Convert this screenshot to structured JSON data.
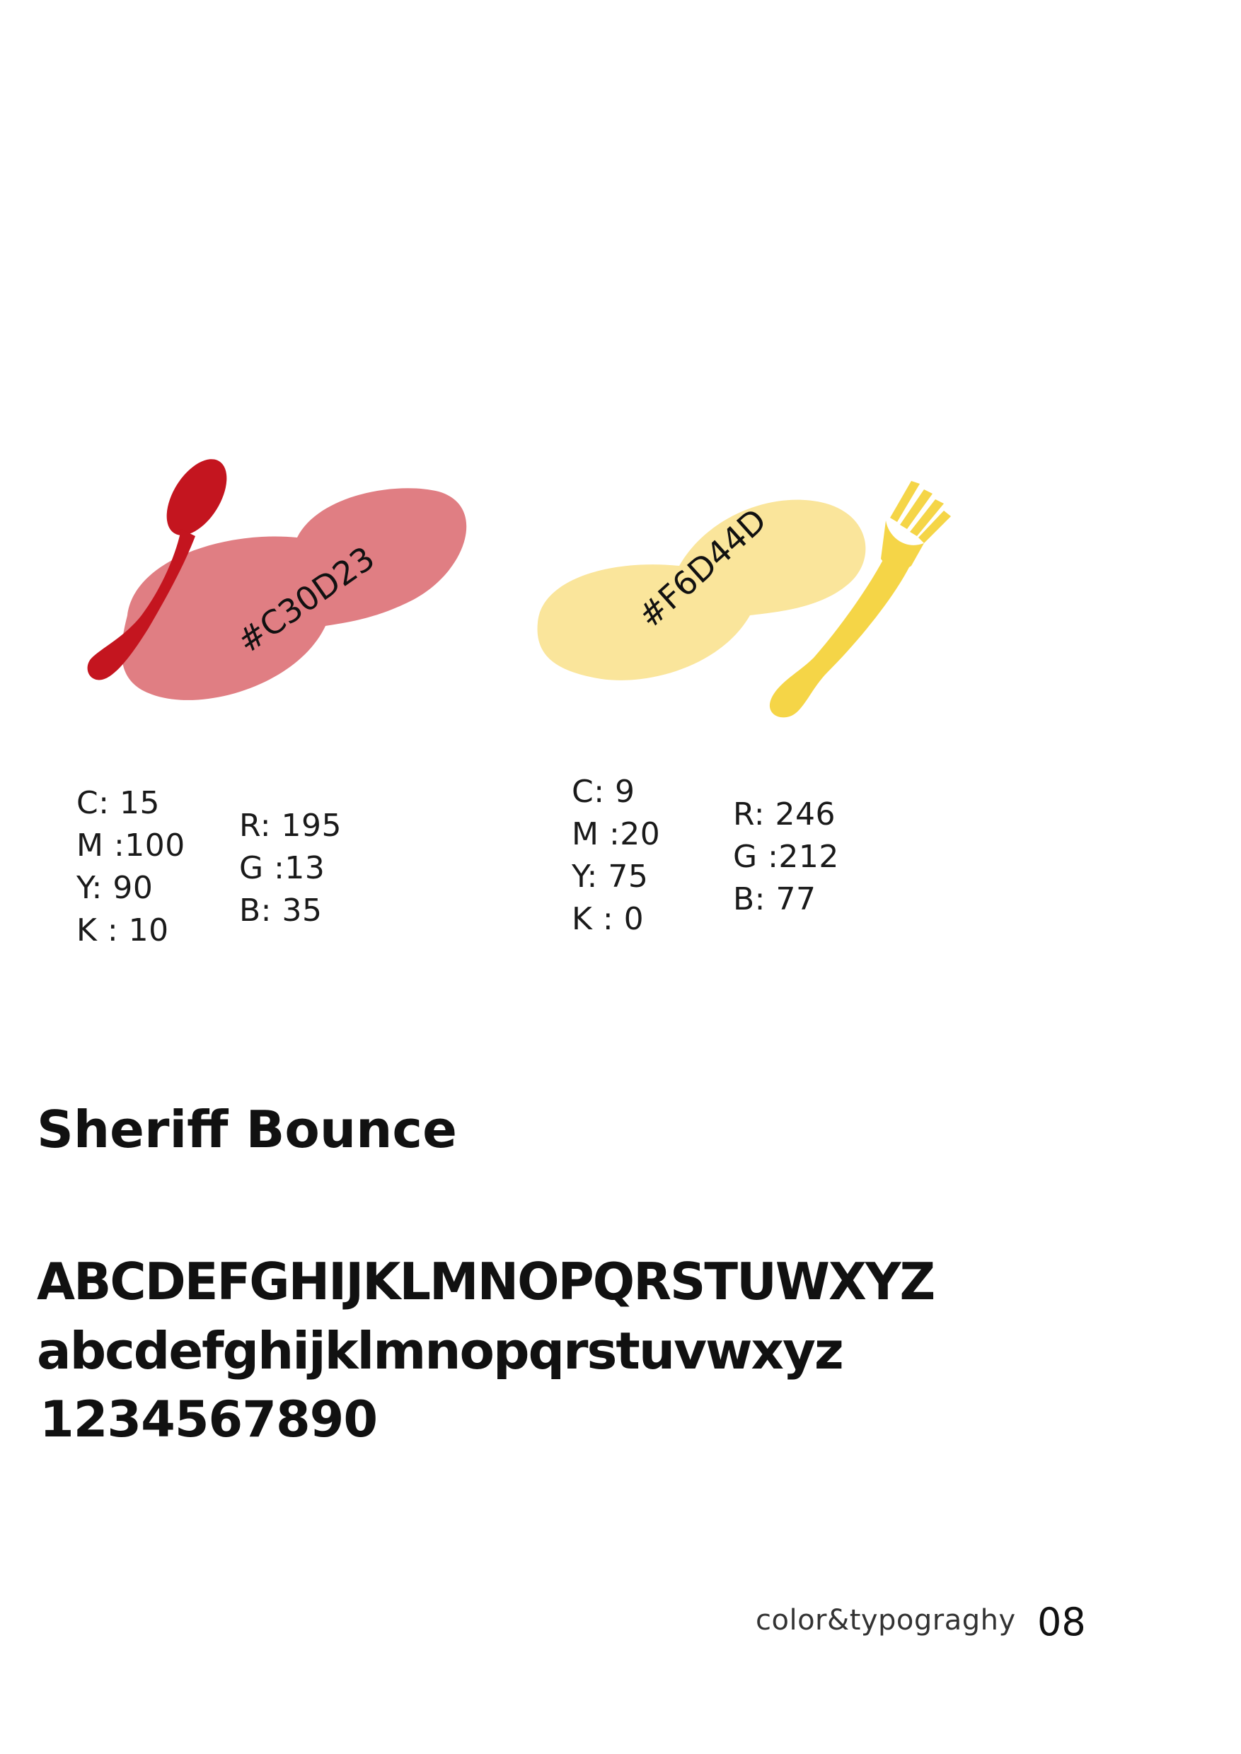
{
  "colors": {
    "primary": {
      "hex_label": "#C30D23",
      "swatch_color": "#E07E83",
      "utensil_color": "#C4151F",
      "cmyk": [
        "C: 15",
        "M :100",
        "Y: 90",
        "K : 10"
      ],
      "rgb": [
        "R: 195",
        "G :13",
        "B: 35"
      ],
      "utensil_icon": "spoon-icon"
    },
    "secondary": {
      "hex_label": "#F6D44D",
      "swatch_color": "#FAE59B",
      "utensil_color": "#F5D547",
      "cmyk": [
        "C: 9",
        "M :20",
        "Y: 75",
        "K : 0"
      ],
      "rgb": [
        "R: 246",
        "G :212",
        "B: 77"
      ],
      "utensil_icon": "fork-icon"
    }
  },
  "typography": {
    "font_name": "Sheriff Bounce",
    "uppercase_sample": "ABCDEFGHIJKLMNOPQRSTUWXYZ",
    "lowercase_sample": "abcdefghijklmnopqrstuvwxyz",
    "digits_sample": "1234567890"
  },
  "footer": {
    "section_label": "color&typograghy",
    "page_number": "08"
  }
}
